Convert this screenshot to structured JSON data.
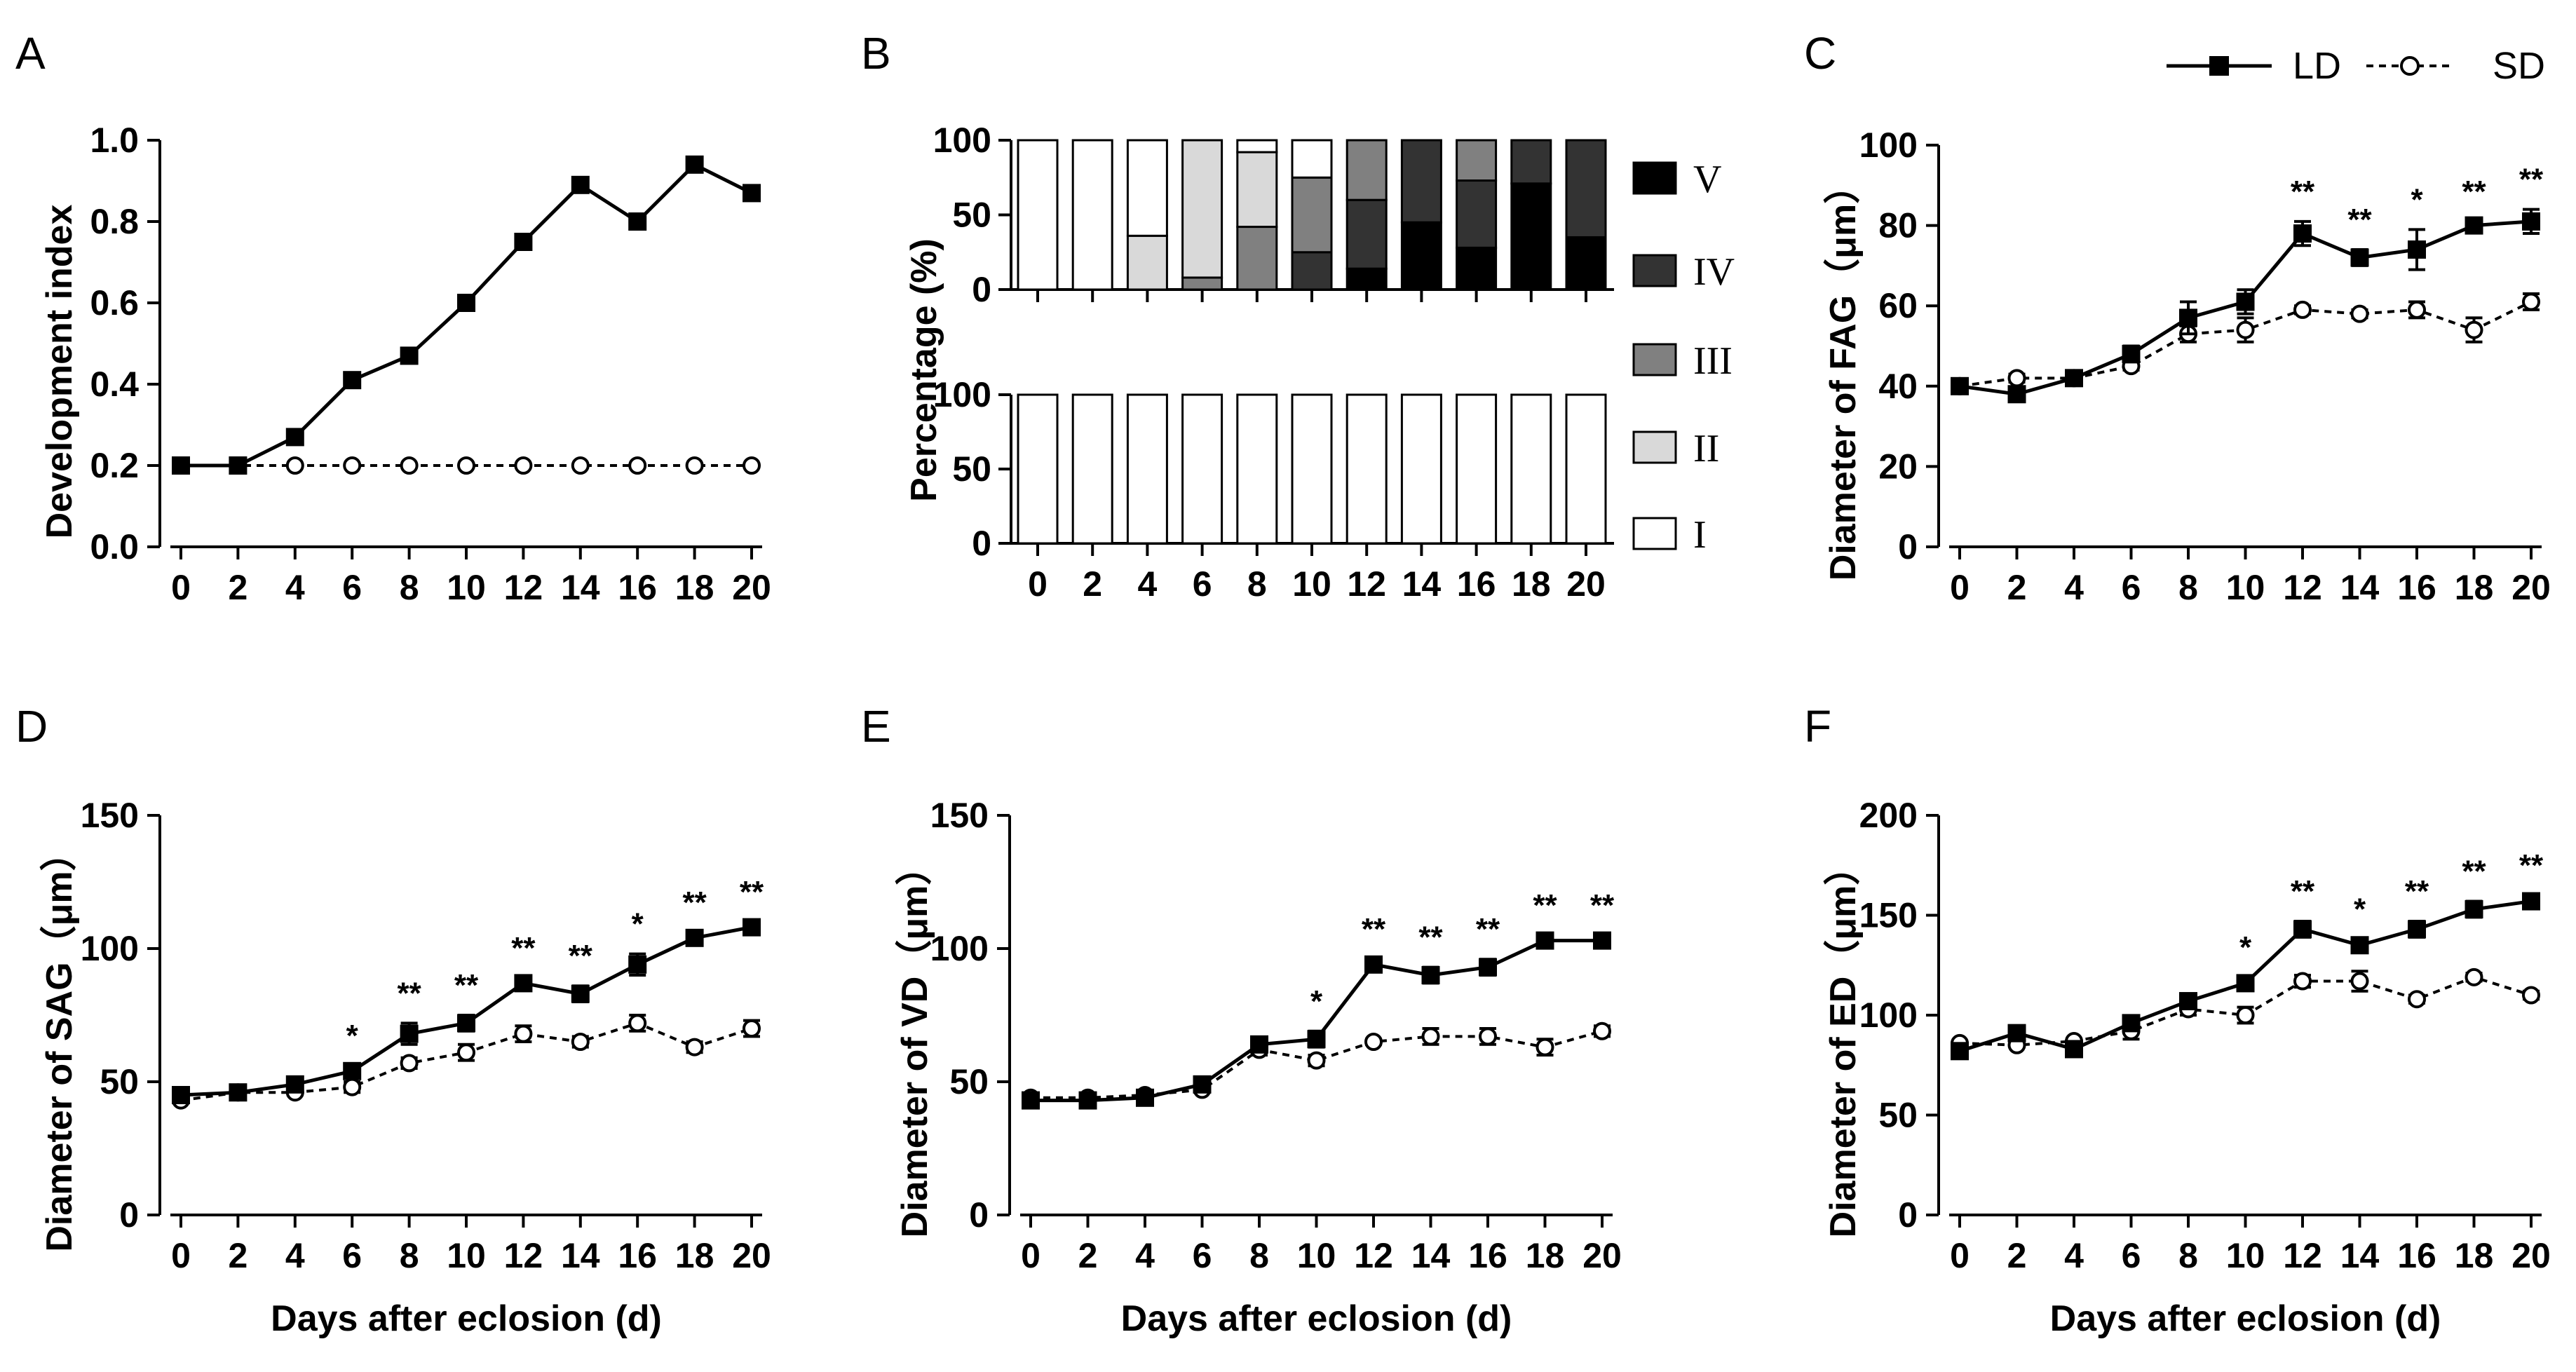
{
  "legend": {
    "ld": "LD",
    "sd": "SD"
  },
  "common": {
    "x_ticks": [
      "0",
      "2",
      "4",
      "6",
      "8",
      "10",
      "12",
      "14",
      "16",
      "18",
      "20"
    ],
    "xlabel": "Days after eclosion (d)"
  },
  "chart_data": [
    {
      "panel": "A",
      "type": "line",
      "ylabel": "Development index",
      "ylim": [
        0,
        1.0
      ],
      "yticks": [
        "0.0",
        "0.2",
        "0.4",
        "0.6",
        "0.8",
        "1.0"
      ],
      "x": [
        0,
        2,
        4,
        6,
        8,
        10,
        12,
        14,
        16,
        18,
        20
      ],
      "series": [
        {
          "name": "LD",
          "values": [
            0.2,
            0.2,
            0.27,
            0.41,
            0.47,
            0.6,
            0.75,
            0.89,
            0.8,
            0.94,
            0.87
          ]
        },
        {
          "name": "SD",
          "values": [
            0.2,
            0.2,
            0.2,
            0.2,
            0.2,
            0.2,
            0.2,
            0.2,
            0.2,
            0.2,
            0.2
          ]
        }
      ]
    },
    {
      "panel": "B",
      "type": "bar",
      "stacked": true,
      "ylabel": "Percentage (%)",
      "yticks": [
        "0",
        "50",
        "100"
      ],
      "categories": [
        "0",
        "2",
        "4",
        "6",
        "8",
        "10",
        "12",
        "14",
        "16",
        "18",
        "20"
      ],
      "stages": [
        "V",
        "IV",
        "III",
        "II",
        "I"
      ],
      "stage_colors": {
        "I": "#ffffff",
        "II": "#d9d9d9",
        "III": "#808080",
        "IV": "#333333",
        "V": "#000000"
      },
      "top": [
        {
          "I": 100,
          "II": 0,
          "III": 0,
          "IV": 0,
          "V": 0
        },
        {
          "I": 100,
          "II": 0,
          "III": 0,
          "IV": 0,
          "V": 0
        },
        {
          "I": 64,
          "II": 36,
          "III": 0,
          "IV": 0,
          "V": 0
        },
        {
          "I": 0,
          "II": 92,
          "III": 8,
          "IV": 0,
          "V": 0
        },
        {
          "I": 8,
          "II": 50,
          "III": 42,
          "IV": 0,
          "V": 0
        },
        {
          "I": 25,
          "II": 0,
          "III": 50,
          "IV": 25,
          "V": 0
        },
        {
          "I": 0,
          "II": 0,
          "III": 40,
          "IV": 46,
          "V": 14
        },
        {
          "I": 0,
          "II": 0,
          "III": 0,
          "IV": 55,
          "V": 45
        },
        {
          "I": 0,
          "II": 0,
          "III": 27,
          "IV": 45,
          "V": 28
        },
        {
          "I": 0,
          "II": 0,
          "III": 0,
          "IV": 29,
          "V": 71
        },
        {
          "I": 0,
          "II": 0,
          "III": 0,
          "IV": 65,
          "V": 35
        }
      ],
      "bottom": [
        {
          "I": 100
        },
        {
          "I": 100
        },
        {
          "I": 100
        },
        {
          "I": 100
        },
        {
          "I": 100
        },
        {
          "I": 100
        },
        {
          "I": 100
        },
        {
          "I": 100
        },
        {
          "I": 100
        },
        {
          "I": 100
        },
        {
          "I": 100
        }
      ]
    },
    {
      "panel": "C",
      "type": "line",
      "ylabel": "Diameter of FAG（μm）",
      "ylim": [
        0,
        100
      ],
      "yticks": [
        "0",
        "20",
        "40",
        "60",
        "80",
        "100"
      ],
      "x": [
        0,
        2,
        4,
        6,
        8,
        10,
        12,
        14,
        16,
        18,
        20
      ],
      "series": [
        {
          "name": "LD",
          "values": [
            40,
            38,
            42,
            48,
            57,
            61,
            78,
            72,
            74,
            80,
            81
          ],
          "err": [
            1,
            1,
            1,
            2,
            4,
            3,
            3,
            2,
            5,
            1,
            3
          ]
        },
        {
          "name": "SD",
          "values": [
            40,
            42,
            42,
            45,
            53,
            54,
            59,
            58,
            59,
            54,
            61
          ],
          "err": [
            1,
            1,
            1,
            1,
            2,
            3,
            1,
            1,
            2,
            3,
            2
          ]
        }
      ],
      "stars": [
        "",
        "",
        "",
        "",
        "",
        "",
        "**",
        "**",
        "*",
        "**",
        "**"
      ]
    },
    {
      "panel": "D",
      "type": "line",
      "ylabel": "Diameter of SAG（μm）",
      "ylim": [
        0,
        150
      ],
      "yticks": [
        "0",
        "50",
        "100",
        "150"
      ],
      "x": [
        0,
        2,
        4,
        6,
        8,
        10,
        12,
        14,
        16,
        18,
        20
      ],
      "series": [
        {
          "name": "LD",
          "values": [
            45,
            46,
            49,
            54,
            68,
            72,
            87,
            83,
            94,
            104,
            108
          ],
          "err": [
            1,
            1,
            1,
            2,
            4,
            3,
            2,
            3,
            4,
            2,
            2
          ]
        },
        {
          "name": "SD",
          "values": [
            43,
            46,
            46,
            48,
            57,
            61,
            68,
            65,
            72,
            63,
            70
          ],
          "err": [
            1,
            1,
            1,
            2,
            2,
            3,
            3,
            2,
            3,
            2,
            3
          ]
        }
      ],
      "stars": [
        "",
        "",
        "",
        "*",
        "**",
        "**",
        "**",
        "**",
        "*",
        "**",
        "**"
      ]
    },
    {
      "panel": "E",
      "type": "line",
      "ylabel": "Diameter of VD（μm）",
      "ylim": [
        0,
        150
      ],
      "yticks": [
        "0",
        "50",
        "100",
        "150"
      ],
      "x": [
        0,
        2,
        4,
        6,
        8,
        10,
        12,
        14,
        16,
        18,
        20
      ],
      "series": [
        {
          "name": "LD",
          "values": [
            43,
            43,
            44,
            49,
            64,
            66,
            94,
            90,
            93,
            103,
            103
          ],
          "err": [
            1,
            1,
            1,
            2,
            2,
            3,
            2,
            3,
            3,
            2,
            2
          ]
        },
        {
          "name": "SD",
          "values": [
            44,
            44,
            45,
            47,
            62,
            58,
            65,
            67,
            67,
            63,
            69
          ],
          "err": [
            1,
            1,
            1,
            1,
            2,
            2,
            1,
            3,
            3,
            3,
            2
          ]
        }
      ],
      "stars": [
        "",
        "",
        "",
        "",
        "",
        "*",
        "**",
        "**",
        "**",
        "**",
        "**"
      ]
    },
    {
      "panel": "F",
      "type": "line",
      "ylabel": "Diameter of ED（μm）",
      "ylim": [
        0,
        200
      ],
      "yticks": [
        "0",
        "50",
        "100",
        "150",
        "200"
      ],
      "x": [
        0,
        2,
        4,
        6,
        8,
        10,
        12,
        14,
        16,
        18,
        20
      ],
      "series": [
        {
          "name": "LD",
          "values": [
            82,
            91,
            83,
            96,
            107,
            116,
            143,
            135,
            143,
            153,
            157
          ],
          "err": [
            2,
            2,
            2,
            3,
            3,
            3,
            4,
            3,
            4,
            4,
            3
          ]
        },
        {
          "name": "SD",
          "values": [
            86,
            85,
            87,
            92,
            103,
            100,
            117,
            117,
            108,
            119,
            110
          ],
          "err": [
            1,
            1,
            1,
            4,
            3,
            4,
            3,
            5,
            2,
            2,
            2
          ]
        }
      ],
      "stars": [
        "",
        "",
        "",
        "",
        "",
        "*",
        "**",
        "*",
        "**",
        "**",
        "**"
      ]
    }
  ]
}
